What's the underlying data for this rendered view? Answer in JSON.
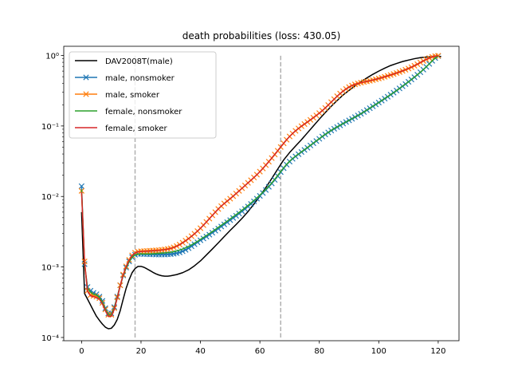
{
  "chart_data": {
    "type": "line",
    "title": "death probabilities (loss: 430.05)",
    "xlabel": "",
    "ylabel": "",
    "yscale": "log",
    "xlim": [
      -6,
      127
    ],
    "ylim": [
      9e-05,
      1.35
    ],
    "x_ticks": [
      0,
      20,
      40,
      60,
      80,
      100,
      120
    ],
    "x_tick_labels": [
      "0",
      "20",
      "40",
      "60",
      "80",
      "100",
      "120"
    ],
    "y_ticks": [
      0.0001,
      0.001,
      0.01,
      0.1,
      1
    ],
    "y_tick_labels": [
      "10⁻⁴",
      "10⁻³",
      "10⁻²",
      "10⁻¹",
      "10⁰"
    ],
    "grid": false,
    "legend_position": "upper-left",
    "vertical_lines": [
      {
        "x": 18,
        "y_from": 0.0001,
        "y_to": 1.0,
        "color": "#b0b0b0",
        "style": "dashed"
      },
      {
        "x": 67,
        "y_from": 0.0001,
        "y_to": 1.0,
        "color": "#b0b0b0",
        "style": "dashed"
      }
    ],
    "series": [
      {
        "name": "DAV2008T(male)",
        "color": "#000000",
        "marker": "none",
        "x": [
          0,
          1,
          2,
          3,
          4,
          5,
          6,
          7,
          8,
          9,
          10,
          11,
          12,
          13,
          14,
          15,
          16,
          17,
          18,
          19,
          20,
          21,
          22,
          23,
          24,
          25,
          26,
          27,
          28,
          29,
          30,
          32,
          34,
          36,
          38,
          40,
          42,
          44,
          46,
          48,
          50,
          52,
          54,
          56,
          58,
          60,
          62,
          64,
          66,
          68,
          70,
          72,
          74,
          76,
          78,
          80,
          82,
          84,
          86,
          88,
          90,
          92,
          94,
          96,
          98,
          100,
          102,
          104,
          106,
          108,
          110,
          112,
          114,
          116,
          118,
          120,
          121
        ],
        "y": [
          0.006,
          0.00042,
          0.00035,
          0.00029,
          0.00024,
          0.0002,
          0.000175,
          0.000155,
          0.00014,
          0.000133,
          0.000135,
          0.00015,
          0.00018,
          0.00024,
          0.00035,
          0.0005,
          0.00066,
          0.00083,
          0.00095,
          0.00102,
          0.00102,
          0.00099,
          0.00094,
          0.00089,
          0.00084,
          0.0008,
          0.00077,
          0.00075,
          0.00074,
          0.00074,
          0.00075,
          0.00078,
          0.00083,
          0.00091,
          0.00104,
          0.00122,
          0.00148,
          0.0018,
          0.0022,
          0.0027,
          0.0033,
          0.004,
          0.0049,
          0.0061,
          0.0078,
          0.0101,
          0.0134,
          0.018,
          0.0245,
          0.033,
          0.042,
          0.052,
          0.064,
          0.08,
          0.1,
          0.125,
          0.155,
          0.19,
          0.23,
          0.275,
          0.32,
          0.37,
          0.425,
          0.48,
          0.54,
          0.6,
          0.66,
          0.72,
          0.77,
          0.82,
          0.86,
          0.9,
          0.93,
          0.95,
          0.965,
          0.97,
          0.97
        ]
      },
      {
        "name": "male, nonsmoker",
        "color": "#1f77b4",
        "marker": "x",
        "x": [
          0,
          1,
          2,
          3,
          4,
          5,
          6,
          7,
          8,
          9,
          10,
          11,
          12,
          13,
          14,
          15,
          16,
          17,
          18,
          19,
          20,
          21,
          22,
          23,
          24,
          25,
          26,
          27,
          28,
          29,
          30,
          31,
          32,
          33,
          34,
          35,
          36,
          37,
          38,
          39,
          40,
          41,
          42,
          43,
          44,
          45,
          46,
          47,
          48,
          49,
          50,
          51,
          52,
          53,
          54,
          55,
          56,
          57,
          58,
          59,
          60,
          61,
          62,
          63,
          64,
          65,
          66,
          67,
          68,
          69,
          70,
          71,
          72,
          73,
          74,
          75,
          76,
          77,
          78,
          79,
          80,
          81,
          82,
          83,
          84,
          85,
          86,
          87,
          88,
          89,
          90,
          91,
          92,
          93,
          94,
          95,
          96,
          97,
          98,
          99,
          100,
          101,
          102,
          103,
          104,
          105,
          106,
          107,
          108,
          109,
          110,
          111,
          112,
          113,
          114,
          115,
          116,
          117,
          118,
          119,
          120
        ],
        "y": [
          0.014,
          0.0011,
          0.00052,
          0.00046,
          0.00043,
          0.00041,
          0.00038,
          0.00033,
          0.00026,
          0.00022,
          0.00022,
          0.00027,
          0.00038,
          0.00055,
          0.00076,
          0.00098,
          0.0012,
          0.00138,
          0.00149,
          0.00153,
          0.00153,
          0.00152,
          0.00152,
          0.00151,
          0.00151,
          0.0015,
          0.0015,
          0.0015,
          0.0015,
          0.00151,
          0.00152,
          0.00154,
          0.00157,
          0.00161,
          0.00167,
          0.00175,
          0.00185,
          0.00197,
          0.0021,
          0.00224,
          0.00239,
          0.00254,
          0.0027,
          0.00287,
          0.00306,
          0.00327,
          0.0035,
          0.00375,
          0.00402,
          0.00431,
          0.00462,
          0.00496,
          0.00532,
          0.00572,
          0.00616,
          0.00665,
          0.0072,
          0.00782,
          0.00852,
          0.00931,
          0.0102,
          0.0112,
          0.01235,
          0.0137,
          0.0153,
          0.0172,
          0.0195,
          0.0222,
          0.0252,
          0.0283,
          0.0313,
          0.0342,
          0.037,
          0.0398,
          0.0427,
          0.0458,
          0.0492,
          0.0529,
          0.0569,
          0.0612,
          0.0658,
          0.0707,
          0.0758,
          0.081,
          0.0862,
          0.0914,
          0.0966,
          0.102,
          0.108,
          0.114,
          0.12,
          0.1265,
          0.1335,
          0.141,
          0.149,
          0.158,
          0.168,
          0.1785,
          0.19,
          0.202,
          0.215,
          0.229,
          0.244,
          0.26,
          0.278,
          0.297,
          0.318,
          0.341,
          0.366,
          0.393,
          0.423,
          0.456,
          0.492,
          0.533,
          0.578,
          0.63,
          0.69,
          0.76,
          0.84,
          0.92,
          0.98
        ]
      },
      {
        "name": "male, smoker",
        "color": "#ff7f0e",
        "marker": "x",
        "x": [
          0,
          1,
          2,
          3,
          4,
          5,
          6,
          7,
          8,
          9,
          10,
          11,
          12,
          13,
          14,
          15,
          16,
          17,
          18,
          19,
          20,
          21,
          22,
          23,
          24,
          25,
          26,
          27,
          28,
          29,
          30,
          31,
          32,
          33,
          34,
          35,
          36,
          37,
          38,
          39,
          40,
          41,
          42,
          43,
          44,
          45,
          46,
          47,
          48,
          49,
          50,
          51,
          52,
          53,
          54,
          55,
          56,
          57,
          58,
          59,
          60,
          61,
          62,
          63,
          64,
          65,
          66,
          67,
          68,
          69,
          70,
          71,
          72,
          73,
          74,
          75,
          76,
          77,
          78,
          79,
          80,
          81,
          82,
          83,
          84,
          85,
          86,
          87,
          88,
          89,
          90,
          91,
          92,
          93,
          94,
          95,
          96,
          97,
          98,
          99,
          100,
          101,
          102,
          103,
          104,
          105,
          106,
          107,
          108,
          109,
          110,
          111,
          112,
          113,
          114,
          115,
          116,
          117,
          118,
          119,
          120
        ],
        "y": [
          0.012,
          0.0012,
          0.00046,
          0.0004,
          0.00039,
          0.00038,
          0.00036,
          0.00031,
          0.00025,
          0.00021,
          0.00021,
          0.00026,
          0.00037,
          0.00055,
          0.00078,
          0.00102,
          0.00126,
          0.00146,
          0.00159,
          0.00165,
          0.00167,
          0.00168,
          0.00169,
          0.0017,
          0.00171,
          0.00172,
          0.00173,
          0.00175,
          0.00177,
          0.0018,
          0.00184,
          0.0019,
          0.00198,
          0.00208,
          0.00221,
          0.00236,
          0.00253,
          0.00273,
          0.00296,
          0.00323,
          0.00355,
          0.00392,
          0.00435,
          0.00485,
          0.0054,
          0.006,
          0.00665,
          0.0073,
          0.00795,
          0.0086,
          0.0093,
          0.0101,
          0.011,
          0.012,
          0.0131,
          0.0143,
          0.0156,
          0.017,
          0.0186,
          0.0204,
          0.0225,
          0.025,
          0.0279,
          0.0312,
          0.035,
          0.0394,
          0.0445,
          0.0503,
          0.0568,
          0.0638,
          0.071,
          0.0782,
          0.0853,
          0.0923,
          0.0993,
          0.1065,
          0.114,
          0.122,
          0.131,
          0.141,
          0.152,
          0.165,
          0.18,
          0.198,
          0.218,
          0.24,
          0.264,
          0.288,
          0.312,
          0.335,
          0.356,
          0.374,
          0.389,
          0.401,
          0.411,
          0.42,
          0.429,
          0.438,
          0.448,
          0.459,
          0.471,
          0.484,
          0.498,
          0.513,
          0.529,
          0.546,
          0.564,
          0.583,
          0.604,
          0.627,
          0.653,
          0.682,
          0.715,
          0.752,
          0.793,
          0.837,
          0.88,
          0.92,
          0.955,
          0.978,
          0.99
        ]
      },
      {
        "name": "female, nonsmoker",
        "color": "#2ca02c",
        "marker": "none",
        "x": [
          0,
          1,
          2,
          3,
          4,
          5,
          6,
          7,
          8,
          9,
          10,
          11,
          12,
          13,
          14,
          15,
          16,
          17,
          18,
          19,
          20,
          21,
          22,
          23,
          24,
          25,
          26,
          27,
          28,
          29,
          30,
          31,
          32,
          33,
          34,
          35,
          36,
          37,
          38,
          39,
          40,
          41,
          42,
          43,
          44,
          45,
          46,
          47,
          48,
          49,
          50,
          51,
          52,
          53,
          54,
          55,
          56,
          57,
          58,
          59,
          60,
          61,
          62,
          63,
          64,
          65,
          66,
          67,
          68,
          69,
          70,
          71,
          72,
          73,
          74,
          75,
          76,
          77,
          78,
          79,
          80,
          81,
          82,
          83,
          84,
          85,
          86,
          87,
          88,
          89,
          90,
          91,
          92,
          93,
          94,
          95,
          96,
          97,
          98,
          99,
          100,
          101,
          102,
          103,
          104,
          105,
          106,
          107,
          108,
          109,
          110,
          111,
          112,
          113,
          114,
          115,
          116,
          117,
          118,
          119,
          120
        ],
        "y": [
          0.0125,
          0.00105,
          0.0005,
          0.00044,
          0.00041,
          0.0004,
          0.00037,
          0.00032,
          0.00025,
          0.00021,
          0.00021,
          0.00026,
          0.00037,
          0.00054,
          0.00075,
          0.00097,
          0.00119,
          0.00137,
          0.00148,
          0.00152,
          0.00153,
          0.00153,
          0.00153,
          0.00153,
          0.00154,
          0.00155,
          0.00156,
          0.00157,
          0.00158,
          0.0016,
          0.00162,
          0.00165,
          0.00169,
          0.00174,
          0.0018,
          0.00187,
          0.00196,
          0.00206,
          0.00218,
          0.00231,
          0.00246,
          0.00262,
          0.00279,
          0.00298,
          0.00318,
          0.0034,
          0.00364,
          0.0039,
          0.00418,
          0.00448,
          0.0048,
          0.00515,
          0.00553,
          0.00594,
          0.0064,
          0.0069,
          0.00746,
          0.00808,
          0.00878,
          0.00957,
          0.01045,
          0.01146,
          0.01262,
          0.01398,
          0.01558,
          0.0175,
          0.0198,
          0.0225,
          0.0255,
          0.0286,
          0.0316,
          0.0345,
          0.0373,
          0.0401,
          0.043,
          0.0461,
          0.0495,
          0.0532,
          0.0572,
          0.0615,
          0.0661,
          0.071,
          0.0761,
          0.0813,
          0.0865,
          0.0917,
          0.0969,
          0.1023,
          0.1083,
          0.1143,
          0.1203,
          0.1268,
          0.1338,
          0.1413,
          0.1493,
          0.1583,
          0.1683,
          0.1788,
          0.1903,
          0.2023,
          0.2153,
          0.2293,
          0.2443,
          0.2603,
          0.2783,
          0.2973,
          0.3183,
          0.3413,
          0.3663,
          0.3933,
          0.4233,
          0.4563,
          0.4923,
          0.5333,
          0.5783,
          0.6303,
          0.6903,
          0.7603,
          0.8403,
          0.9203,
          0.98
        ]
      },
      {
        "name": "female, smoker",
        "color": "#d62728",
        "marker": "none",
        "x": [
          0,
          1,
          2,
          3,
          4,
          5,
          6,
          7,
          8,
          9,
          10,
          11,
          12,
          13,
          14,
          15,
          16,
          17,
          18,
          19,
          20,
          21,
          22,
          23,
          24,
          25,
          26,
          27,
          28,
          29,
          30,
          31,
          32,
          33,
          34,
          35,
          36,
          37,
          38,
          39,
          40,
          41,
          42,
          43,
          44,
          45,
          46,
          47,
          48,
          49,
          50,
          51,
          52,
          53,
          54,
          55,
          56,
          57,
          58,
          59,
          60,
          61,
          62,
          63,
          64,
          65,
          66,
          67,
          68,
          69,
          70,
          71,
          72,
          73,
          74,
          75,
          76,
          77,
          78,
          79,
          80,
          81,
          82,
          83,
          84,
          85,
          86,
          87,
          88,
          89,
          90,
          91,
          92,
          93,
          94,
          95,
          96,
          97,
          98,
          99,
          100,
          101,
          102,
          103,
          104,
          105,
          106,
          107,
          108,
          109,
          110,
          111,
          112,
          113,
          114,
          115,
          116,
          117,
          118,
          119,
          120
        ],
        "y": [
          0.0115,
          0.00115,
          0.00045,
          0.00039,
          0.00038,
          0.00037,
          0.00035,
          0.0003,
          0.00024,
          0.0002,
          0.0002,
          0.00025,
          0.00036,
          0.00054,
          0.00077,
          0.00101,
          0.00125,
          0.00145,
          0.00158,
          0.00164,
          0.00166,
          0.00167,
          0.00168,
          0.00169,
          0.0017,
          0.00171,
          0.00172,
          0.00174,
          0.00176,
          0.00179,
          0.00183,
          0.00189,
          0.00197,
          0.00207,
          0.0022,
          0.00235,
          0.00252,
          0.00272,
          0.00295,
          0.00322,
          0.00354,
          0.00391,
          0.00434,
          0.00484,
          0.00539,
          0.00599,
          0.00664,
          0.00729,
          0.00794,
          0.00859,
          0.00929,
          0.01009,
          0.01099,
          0.01199,
          0.01309,
          0.01429,
          0.01559,
          0.01699,
          0.01859,
          0.02039,
          0.02249,
          0.02499,
          0.02789,
          0.03119,
          0.03499,
          0.03939,
          0.04449,
          0.05029,
          0.05679,
          0.06379,
          0.07099,
          0.07819,
          0.08529,
          0.09229,
          0.09929,
          0.10649,
          0.11399,
          0.12199,
          0.13099,
          0.14099,
          0.15199,
          0.16499,
          0.17999,
          0.19799,
          0.21799,
          0.23999,
          0.26399,
          0.28799,
          0.31199,
          0.33499,
          0.35599,
          0.37399,
          0.38899,
          0.40099,
          0.41099,
          0.41999,
          0.42899,
          0.43799,
          0.44799,
          0.45899,
          0.47099,
          0.48399,
          0.49799,
          0.51299,
          0.52899,
          0.54599,
          0.56399,
          0.58299,
          0.60399,
          0.62699,
          0.65299,
          0.68199,
          0.71499,
          0.75199,
          0.79299,
          0.83699,
          0.87999,
          0.91999,
          0.95499,
          0.97799,
          0.99
        ]
      }
    ]
  }
}
